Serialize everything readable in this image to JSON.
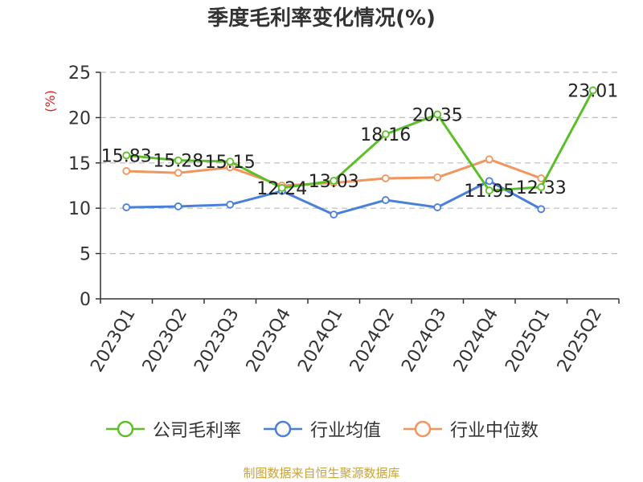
{
  "chart_data": {
    "type": "line",
    "title": "季度毛利率变化情况(%)",
    "ylabel": "(%)",
    "ylim": [
      0,
      25
    ],
    "yticks": [
      "0",
      "5",
      "10",
      "15",
      "20",
      "25"
    ],
    "categories": [
      "2023Q1",
      "2023Q2",
      "2023Q3",
      "2023Q4",
      "2024Q1",
      "2024Q2",
      "2024Q3",
      "2024Q4",
      "2025Q1",
      "2025Q2"
    ],
    "series": [
      {
        "name": "公司毛利率",
        "color": "#5cbf28",
        "values": [
          15.83,
          15.28,
          15.15,
          12.24,
          13.03,
          18.16,
          20.35,
          11.95,
          12.33,
          23.01
        ],
        "labels": [
          "15.83",
          "15.28",
          "15.15",
          "12.24",
          "13.03",
          "18.16",
          "20.35",
          "11.95",
          "12.33",
          "23.01"
        ]
      },
      {
        "name": "行业均值",
        "color": "#4a7fdb",
        "values": [
          10.1,
          10.2,
          10.4,
          11.9,
          9.3,
          10.9,
          10.1,
          13.0,
          9.9,
          null
        ]
      },
      {
        "name": "行业中位数",
        "color": "#f2955e",
        "values": [
          14.1,
          13.9,
          14.5,
          12.5,
          12.8,
          13.3,
          13.4,
          15.4,
          13.3,
          null
        ]
      }
    ],
    "grid": true,
    "legend_position": "bottom"
  },
  "source": "制图数据来自恒生聚源数据库"
}
